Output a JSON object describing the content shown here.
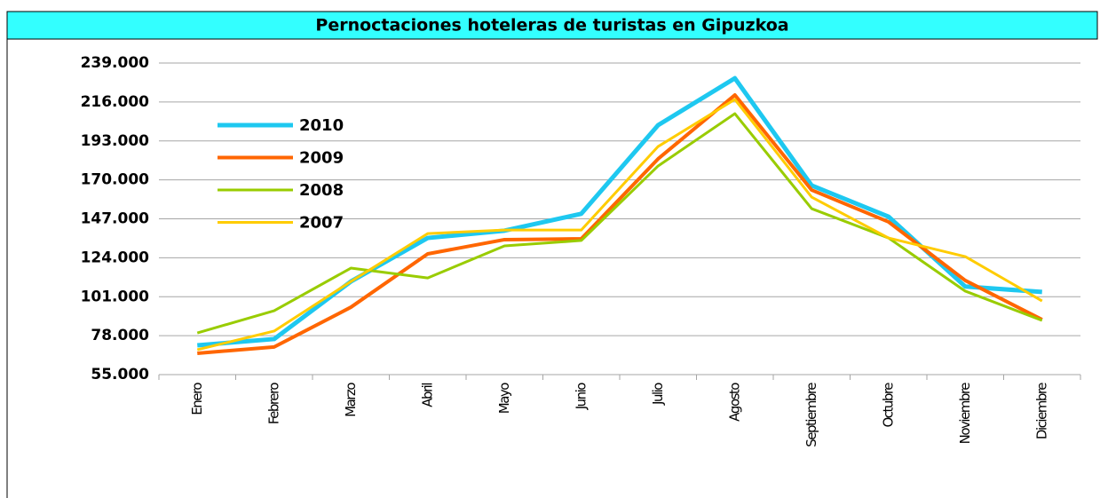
{
  "chart_data": {
    "type": "line",
    "title": "Pernoctaciones hoteleras de turistas en Gipuzkoa",
    "categories": [
      "Enero",
      "Febrero",
      "Marzo",
      "Abril",
      "Mayo",
      "Junio",
      "Julio",
      "Agosto",
      "Septiembre",
      "Octubre",
      "Noviembre",
      "Diciembre"
    ],
    "series": [
      {
        "name": "2010",
        "color": "#1ec8f0",
        "values": [
          72300,
          76000,
          110000,
          135700,
          140000,
          150000,
          202300,
          230000,
          166700,
          148300,
          107000,
          103800
        ]
      },
      {
        "name": "2009",
        "color": "#ff6600",
        "values": [
          67600,
          71300,
          94800,
          126300,
          134700,
          135200,
          182400,
          220100,
          164000,
          145200,
          110600,
          87500
        ]
      },
      {
        "name": "2008",
        "color": "#99cc00",
        "values": [
          79600,
          92700,
          117900,
          112100,
          131000,
          134200,
          178200,
          209100,
          153000,
          135700,
          104300,
          87000
        ]
      },
      {
        "name": "2007",
        "color": "#ffcc00",
        "values": [
          69700,
          80700,
          110000,
          138300,
          140400,
          140400,
          189700,
          217500,
          159800,
          135700,
          124700,
          98500
        ]
      }
    ],
    "ylim": [
      55000,
      239000
    ],
    "yticks": [
      {
        "value": 55000,
        "label": "55.000"
      },
      {
        "value": 78000,
        "label": "78.000"
      },
      {
        "value": 101000,
        "label": "101.000"
      },
      {
        "value": 124000,
        "label": "124.000"
      },
      {
        "value": 147000,
        "label": "147.000"
      },
      {
        "value": 170000,
        "label": "170.000"
      },
      {
        "value": 193000,
        "label": "193.000"
      },
      {
        "value": 216000,
        "label": "216.000"
      },
      {
        "value": 239000,
        "label": "239.000"
      }
    ],
    "grid": true
  }
}
